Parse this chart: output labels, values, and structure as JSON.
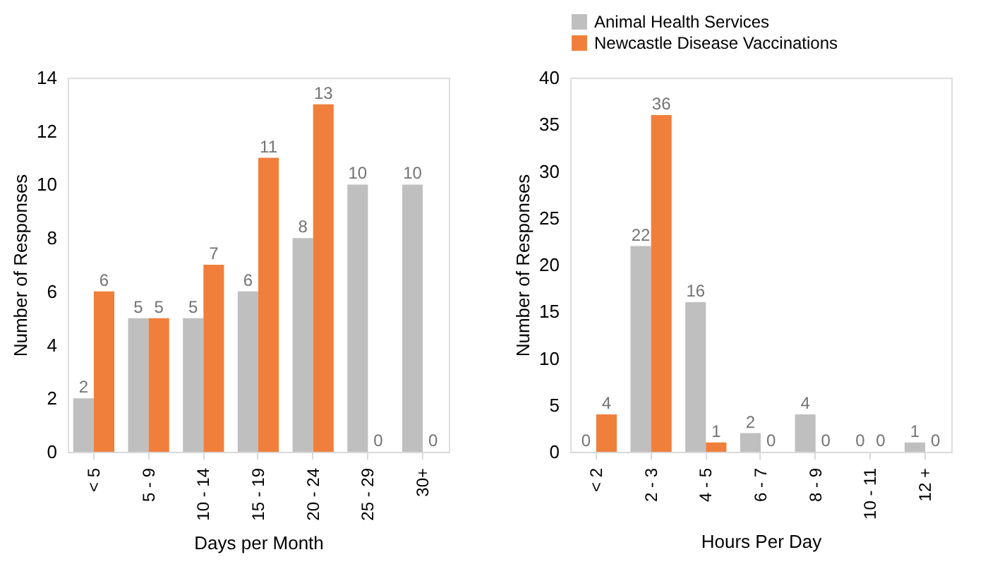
{
  "chart_data": [
    {
      "type": "bar",
      "xlabel": "Days per Month",
      "ylabel": "Number of Responses",
      "categories": [
        "< 5",
        "5 - 9",
        "10 - 14",
        "15 - 19",
        "20 - 24",
        "25 - 29",
        "30+"
      ],
      "series": [
        {
          "color": "#bfbfbf",
          "values": [
            2,
            5,
            5,
            6,
            8,
            10,
            10
          ]
        },
        {
          "color": "#f07f3c",
          "values": [
            6,
            5,
            7,
            11,
            13,
            0,
            0
          ]
        }
      ],
      "ylim": [
        0,
        14
      ],
      "yticks": [
        0,
        2,
        4,
        6,
        8,
        10,
        12,
        14
      ],
      "grid": false,
      "data_labels": true
    },
    {
      "type": "bar",
      "xlabel": "Hours Per Day",
      "ylabel": "Number of Responses",
      "categories": [
        "< 2",
        "2 - 3",
        "4 - 5",
        "6 - 7",
        "8 - 9",
        "10 - 11",
        "12 +"
      ],
      "series": [
        {
          "name": "Animal Health Services",
          "color": "#bfbfbf",
          "values": [
            0,
            22,
            16,
            2,
            4,
            0,
            1
          ]
        },
        {
          "name": "Newcastle Disease Vaccinations",
          "color": "#f07f3c",
          "values": [
            4,
            36,
            1,
            0,
            0,
            0,
            0
          ]
        }
      ],
      "ylim": [
        0,
        40
      ],
      "yticks": [
        0,
        5,
        10,
        15,
        20,
        25,
        30,
        35,
        40
      ],
      "grid": false,
      "legend": "top",
      "data_labels": true
    }
  ]
}
